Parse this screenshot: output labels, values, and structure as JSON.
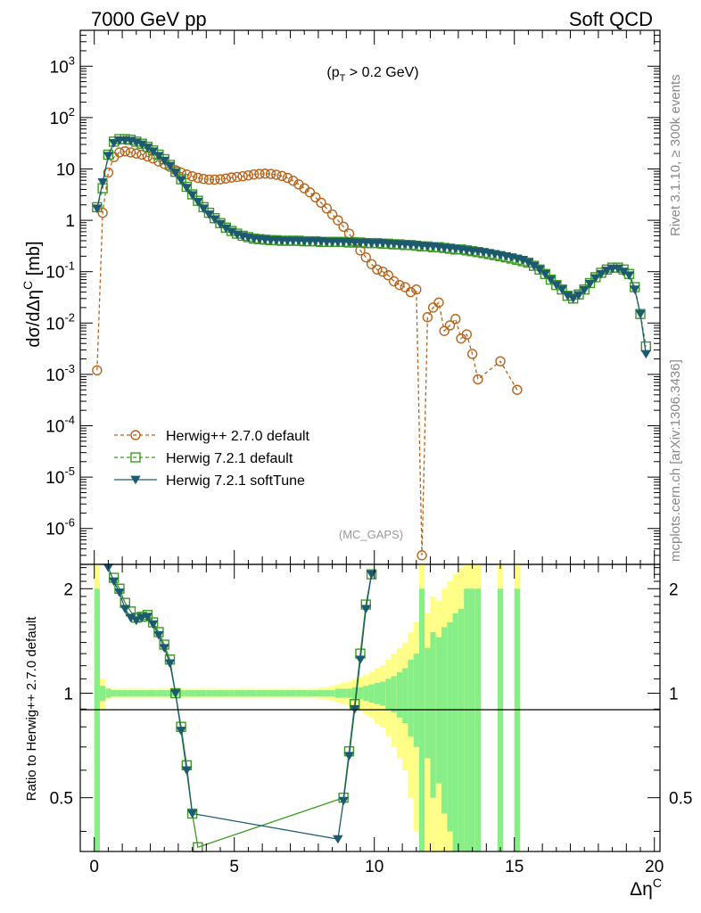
{
  "header": {
    "left": "7000 GeV pp",
    "right": "Soft QCD"
  },
  "side": {
    "rivet": "Rivet 3.1.10, ≥ 300k events",
    "mcplots": "mcplots.cern.ch [arXiv:1306.3436]"
  },
  "chart_data": {
    "type": "scatter",
    "title": "",
    "annotation": "(p_T > 0.2 GeV)",
    "watermark": "(MC_GAPS)",
    "xlabel": "Δη^C",
    "ylabel_main": "dσ/dΔη^C [mb]",
    "ylabel_ratio": "Ratio to Herwig++ 2.7.0 default",
    "xlim": [
      -0.5,
      20.2
    ],
    "ylim_main": [
      2e-07,
      5000
    ],
    "ylim_ratio": [
      0.35,
      2.35
    ],
    "y_scale_main": "log",
    "legend_position": "bottom-left",
    "x_ticks": [
      "0",
      "5",
      "10",
      "15",
      "20"
    ],
    "ratio_ticks": [
      "0.5",
      "1",
      "2"
    ],
    "series": [
      {
        "name": "Herwig++ 2.7.0 default",
        "color": "#b5651d",
        "marker": "open-circle",
        "line": "dashed",
        "x": [
          0.1,
          0.3,
          0.5,
          0.7,
          0.9,
          1.1,
          1.3,
          1.5,
          1.7,
          1.9,
          2.1,
          2.3,
          2.5,
          2.7,
          2.9,
          3.1,
          3.3,
          3.5,
          3.7,
          3.9,
          4.1,
          4.3,
          4.5,
          4.7,
          4.9,
          5.1,
          5.3,
          5.5,
          5.7,
          5.9,
          6.1,
          6.3,
          6.5,
          6.7,
          6.9,
          7.1,
          7.3,
          7.5,
          7.7,
          7.9,
          8.1,
          8.3,
          8.5,
          8.7,
          8.9,
          9.1,
          9.3,
          9.5,
          9.7,
          9.9,
          10.1,
          10.3,
          10.5,
          10.7,
          10.9,
          11.1,
          11.3,
          11.5,
          11.7,
          11.9,
          12.1,
          12.3,
          12.5,
          12.7,
          12.9,
          13.1,
          13.3,
          13.5,
          13.7,
          14.5,
          15.1
        ],
        "y": [
          0.0012,
          1.4,
          8.5,
          17,
          21,
          22,
          21,
          20,
          19,
          17.5,
          16,
          14,
          12.5,
          11,
          9.5,
          8.5,
          7.8,
          7.2,
          6.7,
          6.4,
          6.2,
          6.2,
          6.3,
          6.5,
          6.8,
          7.0,
          7.2,
          7.5,
          7.8,
          8.0,
          8.1,
          8.0,
          7.7,
          7.3,
          6.7,
          5.9,
          5.0,
          4.2,
          3.5,
          2.8,
          2.2,
          1.7,
          1.3,
          1.0,
          0.75,
          0.55,
          0.38,
          0.26,
          0.19,
          0.14,
          0.11,
          0.1,
          0.085,
          0.065,
          0.055,
          0.05,
          0.04,
          0.045,
          3e-07,
          0.013,
          0.02,
          0.025,
          0.007,
          0.009,
          0.012,
          0.005,
          0.006,
          0.0025,
          0.0008,
          0.0018,
          0.0005
        ]
      },
      {
        "name": "Herwig 7.2.1 default",
        "color": "#3c9a22",
        "marker": "open-square",
        "line": "dashed",
        "x": [
          0.1,
          0.3,
          0.5,
          0.7,
          0.9,
          1.1,
          1.3,
          1.5,
          1.7,
          1.9,
          2.1,
          2.3,
          2.5,
          2.7,
          2.9,
          3.1,
          3.3,
          3.5,
          3.7,
          3.9,
          4.1,
          4.3,
          4.5,
          4.7,
          4.9,
          5.1,
          5.3,
          5.5,
          5.7,
          5.9,
          6.1,
          6.3,
          6.5,
          6.7,
          6.9,
          7.1,
          7.3,
          7.5,
          7.7,
          7.9,
          8.1,
          8.3,
          8.5,
          8.7,
          8.9,
          9.1,
          9.3,
          9.5,
          9.7,
          9.9,
          10.1,
          10.3,
          10.5,
          10.7,
          10.9,
          11.1,
          11.3,
          11.5,
          11.7,
          11.9,
          12.1,
          12.3,
          12.5,
          12.7,
          12.9,
          13.1,
          13.3,
          13.5,
          13.7,
          13.9,
          14.1,
          14.3,
          14.5,
          14.7,
          14.9,
          15.1,
          15.3,
          15.5,
          15.7,
          15.9,
          16.1,
          16.3,
          16.5,
          16.7,
          16.9,
          17.1,
          17.3,
          17.5,
          17.7,
          17.9,
          18.1,
          18.3,
          18.5,
          18.7,
          18.9,
          19.1,
          19.3,
          19.5,
          19.7
        ],
        "y": [
          1.8,
          4.2,
          19,
          34,
          38,
          38,
          37,
          34,
          31,
          27,
          23,
          19,
          15.5,
          12,
          8.8,
          6.3,
          4.5,
          3.2,
          2.4,
          1.8,
          1.4,
          1.1,
          0.88,
          0.72,
          0.62,
          0.55,
          0.5,
          0.47,
          0.44,
          0.43,
          0.42,
          0.41,
          0.41,
          0.4,
          0.4,
          0.4,
          0.4,
          0.39,
          0.39,
          0.39,
          0.38,
          0.38,
          0.38,
          0.38,
          0.38,
          0.37,
          0.37,
          0.37,
          0.36,
          0.36,
          0.36,
          0.35,
          0.35,
          0.34,
          0.34,
          0.33,
          0.33,
          0.32,
          0.31,
          0.31,
          0.3,
          0.3,
          0.29,
          0.28,
          0.27,
          0.27,
          0.26,
          0.25,
          0.24,
          0.23,
          0.22,
          0.21,
          0.2,
          0.19,
          0.18,
          0.17,
          0.16,
          0.15,
          0.13,
          0.11,
          0.09,
          0.07,
          0.055,
          0.045,
          0.034,
          0.03,
          0.036,
          0.045,
          0.06,
          0.078,
          0.095,
          0.11,
          0.12,
          0.12,
          0.11,
          0.09,
          0.05,
          0.015,
          0.0035
        ]
      },
      {
        "name": "Herwig 7.2.1 softTune",
        "color": "#1d5a70",
        "marker": "filled-triangle-down",
        "line": "solid",
        "x": [
          0.1,
          0.3,
          0.5,
          0.7,
          0.9,
          1.1,
          1.3,
          1.5,
          1.7,
          1.9,
          2.1,
          2.3,
          2.5,
          2.7,
          2.9,
          3.1,
          3.3,
          3.5,
          3.7,
          3.9,
          4.1,
          4.3,
          4.5,
          4.7,
          4.9,
          5.1,
          5.3,
          5.5,
          5.7,
          5.9,
          6.1,
          6.3,
          6.5,
          6.7,
          6.9,
          7.1,
          7.3,
          7.5,
          7.7,
          7.9,
          8.1,
          8.3,
          8.5,
          8.7,
          8.9,
          9.1,
          9.3,
          9.5,
          9.7,
          9.9,
          10.1,
          10.3,
          10.5,
          10.7,
          10.9,
          11.1,
          11.3,
          11.5,
          11.7,
          11.9,
          12.1,
          12.3,
          12.5,
          12.7,
          12.9,
          13.1,
          13.3,
          13.5,
          13.7,
          13.9,
          14.1,
          14.3,
          14.5,
          14.7,
          14.9,
          15.1,
          15.3,
          15.5,
          15.7,
          15.9,
          16.1,
          16.3,
          16.5,
          16.7,
          16.9,
          17.1,
          17.3,
          17.5,
          17.7,
          17.9,
          18.1,
          18.3,
          18.5,
          18.7,
          18.9,
          19.1,
          19.3,
          19.5,
          19.7
        ],
        "y": [
          1.7,
          5.5,
          18,
          32,
          36,
          36,
          35,
          33,
          30,
          26,
          22,
          18,
          14.5,
          11.5,
          8.5,
          6,
          4.3,
          3.1,
          2.3,
          1.7,
          1.3,
          1.05,
          0.85,
          0.7,
          0.6,
          0.53,
          0.49,
          0.46,
          0.44,
          0.43,
          0.42,
          0.41,
          0.41,
          0.4,
          0.4,
          0.4,
          0.4,
          0.39,
          0.39,
          0.39,
          0.39,
          0.38,
          0.38,
          0.38,
          0.38,
          0.38,
          0.37,
          0.37,
          0.37,
          0.36,
          0.36,
          0.36,
          0.35,
          0.35,
          0.34,
          0.34,
          0.33,
          0.33,
          0.32,
          0.31,
          0.31,
          0.3,
          0.29,
          0.29,
          0.28,
          0.27,
          0.26,
          0.25,
          0.25,
          0.24,
          0.23,
          0.22,
          0.21,
          0.2,
          0.19,
          0.18,
          0.17,
          0.15,
          0.13,
          0.11,
          0.09,
          0.07,
          0.055,
          0.045,
          0.034,
          0.03,
          0.035,
          0.044,
          0.058,
          0.075,
          0.09,
          0.105,
          0.115,
          0.115,
          0.1,
          0.085,
          0.045,
          0.015,
          0.0025
        ]
      }
    ],
    "ratio_series": [
      {
        "name": "Herwig 7.2.1 default",
        "x": [
          0.7,
          0.9,
          1.1,
          1.3,
          1.5,
          1.7,
          1.9,
          2.1,
          2.3,
          2.5,
          2.7,
          2.9,
          3.1,
          3.3,
          3.5,
          3.7,
          8.9,
          9.1,
          9.3,
          9.5,
          9.7,
          9.9
        ],
        "y": [
          2.15,
          2.0,
          1.82,
          1.72,
          1.65,
          1.66,
          1.68,
          1.6,
          1.5,
          1.38,
          1.25,
          1.0,
          0.8,
          0.62,
          0.45,
          0.36,
          0.5,
          0.68,
          0.93,
          1.3,
          1.8,
          2.2
        ]
      },
      {
        "name": "Herwig 7.2.1 softTune",
        "x": [
          0.5,
          0.7,
          0.9,
          1.1,
          1.3,
          1.5,
          1.7,
          1.9,
          2.1,
          2.3,
          2.5,
          2.7,
          2.9,
          3.1,
          3.3,
          3.5,
          8.7,
          8.9,
          9.1,
          9.3,
          9.5,
          9.7,
          9.9
        ],
        "y": [
          2.3,
          2.1,
          1.95,
          1.75,
          1.65,
          1.62,
          1.65,
          1.66,
          1.58,
          1.47,
          1.35,
          1.22,
          1.0,
          0.78,
          0.6,
          0.45,
          0.38,
          0.49,
          0.66,
          0.9,
          1.25,
          1.75,
          2.2
        ]
      }
    ],
    "uncertainty_band": {
      "x": [
        0.1,
        0.3,
        0.5,
        0.7,
        0.9,
        1.1,
        1.3,
        1.5,
        1.7,
        1.9,
        2.1,
        2.3,
        2.5,
        2.7,
        2.9,
        3.1,
        3.3,
        3.5,
        3.7,
        3.9,
        4.1,
        4.3,
        4.5,
        4.7,
        4.9,
        5.1,
        5.3,
        5.5,
        5.7,
        5.9,
        6.1,
        6.3,
        6.5,
        6.7,
        6.9,
        7.1,
        7.3,
        7.5,
        7.7,
        7.9,
        8.1,
        8.3,
        8.5,
        8.7,
        8.9,
        9.1,
        9.3,
        9.5,
        9.7,
        9.9,
        10.1,
        10.3,
        10.5,
        10.7,
        10.9,
        11.1,
        11.3,
        11.5,
        11.7,
        11.9,
        12.1,
        12.3,
        12.5,
        12.7,
        12.9,
        13.1,
        13.3,
        13.5,
        13.7,
        14.5,
        15.1
      ],
      "stat": [
        1.0,
        0.05,
        0.03,
        0.02,
        0.02,
        0.02,
        0.02,
        0.02,
        0.02,
        0.02,
        0.02,
        0.02,
        0.02,
        0.02,
        0.02,
        0.02,
        0.02,
        0.02,
        0.02,
        0.02,
        0.02,
        0.02,
        0.02,
        0.02,
        0.02,
        0.02,
        0.02,
        0.02,
        0.02,
        0.02,
        0.02,
        0.02,
        0.02,
        0.02,
        0.02,
        0.02,
        0.02,
        0.02,
        0.02,
        0.02,
        0.02,
        0.02,
        0.02,
        0.03,
        0.03,
        0.03,
        0.04,
        0.04,
        0.05,
        0.06,
        0.07,
        0.08,
        0.1,
        0.12,
        0.15,
        0.18,
        0.25,
        0.3,
        1.0,
        0.35,
        0.5,
        0.45,
        0.55,
        0.6,
        0.7,
        0.75,
        1.0,
        1.0,
        1.0,
        1.0,
        1.0
      ],
      "total": [
        1.5,
        0.1,
        0.04,
        0.03,
        0.03,
        0.03,
        0.03,
        0.03,
        0.03,
        0.03,
        0.03,
        0.03,
        0.03,
        0.03,
        0.03,
        0.03,
        0.03,
        0.03,
        0.03,
        0.03,
        0.03,
        0.03,
        0.03,
        0.03,
        0.03,
        0.03,
        0.03,
        0.03,
        0.03,
        0.03,
        0.03,
        0.03,
        0.03,
        0.03,
        0.03,
        0.03,
        0.03,
        0.03,
        0.03,
        0.03,
        0.04,
        0.04,
        0.05,
        0.06,
        0.07,
        0.08,
        0.1,
        0.11,
        0.13,
        0.15,
        0.18,
        0.2,
        0.25,
        0.3,
        0.35,
        0.4,
        0.5,
        0.6,
        1.5,
        0.7,
        0.9,
        0.85,
        1.0,
        1.1,
        1.2,
        1.3,
        1.5,
        1.5,
        1.5,
        1.5,
        1.5
      ]
    }
  }
}
